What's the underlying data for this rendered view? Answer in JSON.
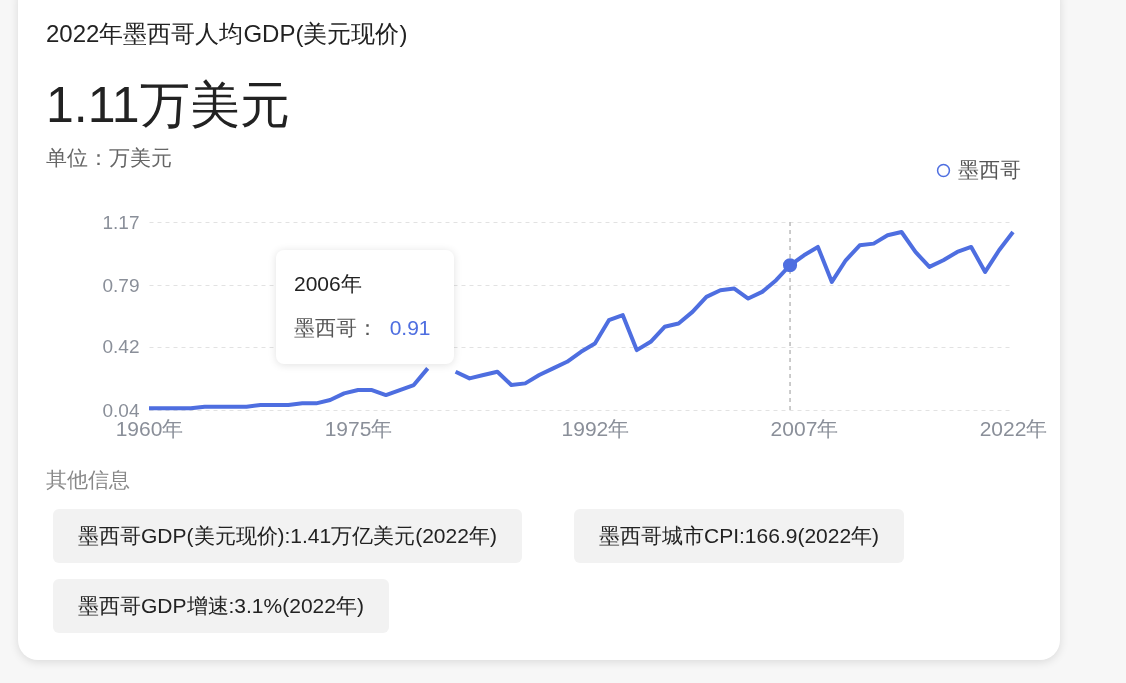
{
  "chart_data": {
    "type": "line",
    "title": "2022年墨西哥人均GDP(美元现价)",
    "subtitle": "1.11万美元",
    "ylabel": "单位：万美元",
    "x": [
      1960,
      1961,
      1962,
      1963,
      1964,
      1965,
      1966,
      1967,
      1968,
      1969,
      1970,
      1971,
      1972,
      1973,
      1974,
      1975,
      1976,
      1977,
      1978,
      1979,
      1980,
      1981,
      1982,
      1983,
      1984,
      1985,
      1986,
      1987,
      1988,
      1989,
      1990,
      1991,
      1992,
      1993,
      1994,
      1995,
      1996,
      1997,
      1998,
      1999,
      2000,
      2001,
      2002,
      2003,
      2004,
      2005,
      2006,
      2007,
      2008,
      2009,
      2010,
      2011,
      2012,
      2013,
      2014,
      2015,
      2016,
      2017,
      2018,
      2019,
      2020,
      2021,
      2022
    ],
    "series": [
      {
        "name": "墨西哥",
        "color": "#4e6ee0",
        "values": [
          0.05,
          0.05,
          0.05,
          0.05,
          0.06,
          0.06,
          0.06,
          0.06,
          0.07,
          0.07,
          0.07,
          0.08,
          0.08,
          0.1,
          0.14,
          0.16,
          0.16,
          0.13,
          0.16,
          0.19,
          0.29,
          null,
          0.27,
          0.23,
          0.25,
          0.27,
          0.19,
          0.2,
          0.25,
          0.29,
          0.33,
          0.39,
          0.44,
          0.58,
          0.61,
          0.4,
          0.45,
          0.54,
          0.56,
          0.63,
          0.72,
          0.76,
          0.77,
          0.71,
          0.75,
          0.82,
          0.91,
          0.97,
          1.02,
          0.81,
          0.94,
          1.03,
          1.04,
          1.09,
          1.11,
          0.99,
          0.9,
          0.94,
          0.99,
          1.02,
          0.87,
          1.0,
          1.11
        ]
      }
    ],
    "xlim": [
      1960,
      2022
    ],
    "xticks": [
      {
        "value": 1960,
        "label": "1960年"
      },
      {
        "value": 1975,
        "label": "1975年"
      },
      {
        "value": 1992,
        "label": "1992年"
      },
      {
        "value": 2007,
        "label": "2007年"
      },
      {
        "value": 2022,
        "label": "2022年"
      }
    ],
    "ylim": [
      0.04,
      1.17
    ],
    "yticks": [
      0.04,
      0.42,
      0.79,
      1.17
    ],
    "grid": "y",
    "legend": "top right",
    "ref_lines": [
      {
        "axis": "x",
        "value": 2006,
        "color": "#bbbbbb",
        "line_style": "dashed"
      }
    ],
    "annotations": [
      "2006年",
      "墨西哥：",
      "0.91",
      "其他信息",
      "墨西哥GDP(美元现价):1.41万亿美元(2022年)",
      "墨西哥城市CPI:166.9(2022年)",
      "墨西哥GDP增速:3.1%(2022年)"
    ]
  }
}
